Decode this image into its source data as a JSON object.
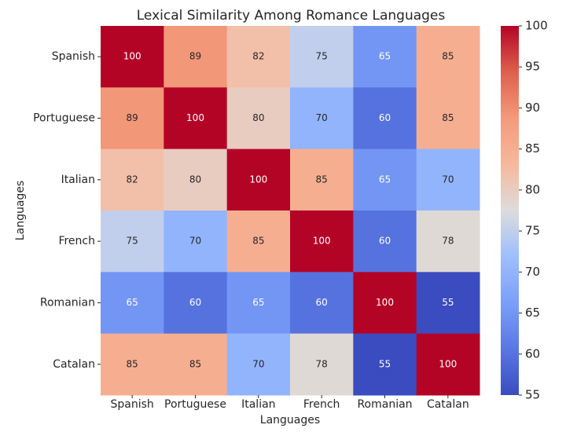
{
  "chart_data": {
    "type": "heatmap",
    "title": "Lexical Similarity Among Romance Languages",
    "x_label": "Languages",
    "y_label": "Languages",
    "x_categories": [
      "Spanish",
      "Portuguese",
      "Italian",
      "French",
      "Romanian",
      "Catalan"
    ],
    "y_categories": [
      "Spanish",
      "Portuguese",
      "Italian",
      "French",
      "Romanian",
      "Catalan"
    ],
    "values": [
      [
        100,
        89,
        82,
        75,
        65,
        85
      ],
      [
        89,
        100,
        80,
        70,
        60,
        85
      ],
      [
        82,
        80,
        100,
        85,
        65,
        70
      ],
      [
        75,
        70,
        85,
        100,
        60,
        78
      ],
      [
        65,
        60,
        65,
        60,
        100,
        55
      ],
      [
        85,
        85,
        70,
        78,
        55,
        100
      ]
    ],
    "colormap": "coolwarm",
    "zlim": [
      55,
      100
    ],
    "zticks": [
      55,
      60,
      65,
      70,
      75,
      80,
      85,
      90,
      95,
      100
    ]
  }
}
